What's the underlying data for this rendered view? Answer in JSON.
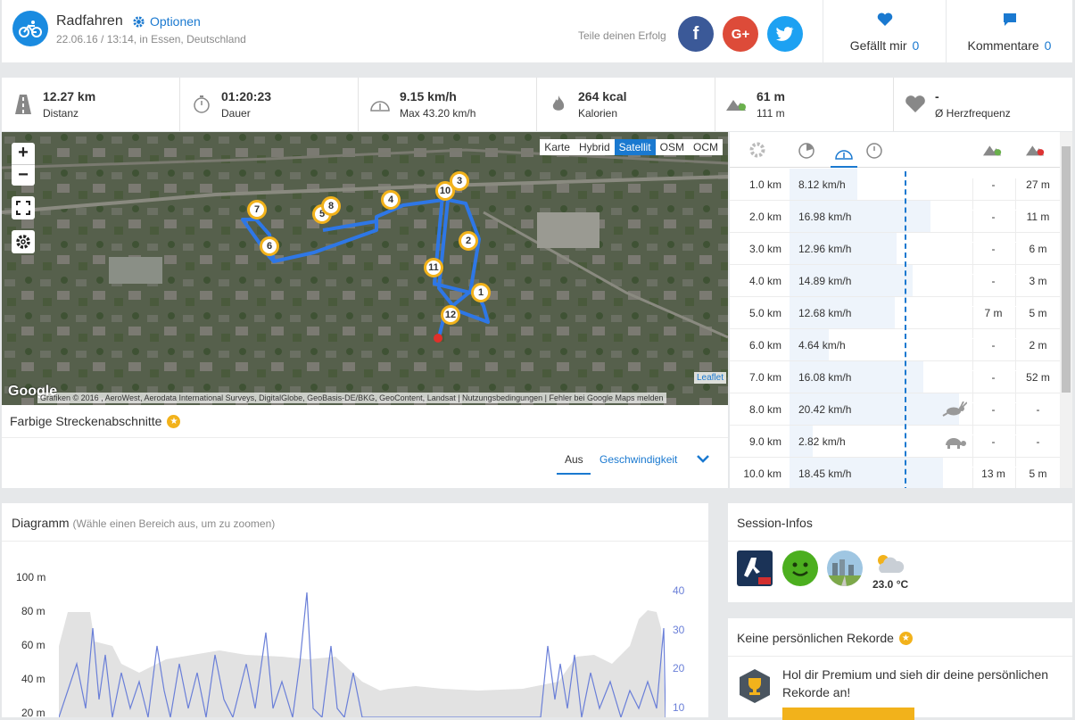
{
  "header": {
    "sport": "Radfahren",
    "options": "Optionen",
    "subline": "22.06.16 / 13:14, in Essen, Deutschland",
    "share_text": "Teile deinen Erfolg",
    "like_label": "Gefällt mir",
    "like_count": "0",
    "comment_label": "Kommentare",
    "comment_count": "0",
    "facebook": "f",
    "google": "G+"
  },
  "stats": [
    {
      "value": "12.27 km",
      "label": "Distanz",
      "icon": "road-icon"
    },
    {
      "value": "01:20:23",
      "label": "Dauer",
      "icon": "stopwatch-icon"
    },
    {
      "value": "9.15 km/h",
      "label": "Max 43.20 km/h",
      "icon": "speedometer-icon"
    },
    {
      "value": "264 kcal",
      "label": "Kalorien",
      "icon": "flame-icon"
    },
    {
      "value": "61 m",
      "label": "111 m",
      "icon": "elevation-icon"
    },
    {
      "value": "-",
      "label": "Ø Herzfrequenz",
      "icon": "heart-icon"
    }
  ],
  "map": {
    "zoom_in": "+",
    "zoom_out": "−",
    "layers": [
      "Karte",
      "Hybrid",
      "Satellit",
      "OSM",
      "OCM"
    ],
    "active_layer": "Satellit",
    "leaflet": "Leaflet",
    "google": "Google",
    "attribution": "Grafiken © 2016 , AeroWest, Aerodata International Surveys, DigitalGlobe, GeoBasis-DE/BKG, GeoContent, Landsat | Nutzungsbedingungen | Fehler bei Google Maps melden",
    "markers": [
      "1",
      "2",
      "3",
      "4",
      "5",
      "6",
      "7",
      "8",
      "10",
      "11",
      "12"
    ]
  },
  "segments": {
    "title": "Farbige Streckenabschnitte",
    "off": "Aus",
    "speed": "Geschwindigkeit"
  },
  "splits": [
    {
      "km": "1.0 km",
      "speed": "8.12 km/h",
      "up": "-",
      "down": "27 m",
      "fraction": 0.38
    },
    {
      "km": "2.0 km",
      "speed": "16.98 km/h",
      "up": "-",
      "down": "11 m",
      "fraction": 0.79
    },
    {
      "km": "3.0 km",
      "speed": "12.96 km/h",
      "up": "-",
      "down": "6 m",
      "fraction": 0.6
    },
    {
      "km": "4.0 km",
      "speed": "14.89 km/h",
      "up": "-",
      "down": "3 m",
      "fraction": 0.69
    },
    {
      "km": "5.0 km",
      "speed": "12.68 km/h",
      "up": "7 m",
      "down": "5 m",
      "fraction": 0.59
    },
    {
      "km": "6.0 km",
      "speed": "4.64 km/h",
      "up": "-",
      "down": "2 m",
      "fraction": 0.22
    },
    {
      "km": "7.0 km",
      "speed": "16.08 km/h",
      "up": "-",
      "down": "52 m",
      "fraction": 0.75
    },
    {
      "km": "8.0 km",
      "speed": "20.42 km/h",
      "up": "-",
      "down": "-",
      "fraction": 0.95,
      "badge": "rabbit-icon"
    },
    {
      "km": "9.0 km",
      "speed": "2.82 km/h",
      "up": "-",
      "down": "-",
      "fraction": 0.13,
      "badge": "turtle-icon"
    },
    {
      "km": "10.0 km",
      "speed": "18.45 km/h",
      "up": "13 m",
      "down": "5 m",
      "fraction": 0.86
    }
  ],
  "diagram": {
    "title": "Diagramm",
    "hint": "(Wähle einen Bereich aus, um zu zoomen)",
    "y_left": [
      "100 m",
      "80 m",
      "60 m",
      "40 m",
      "20 m"
    ],
    "y_right": [
      "40",
      "30",
      "20",
      "10"
    ]
  },
  "session": {
    "title": "Session-Infos",
    "temperature": "23.0 °C"
  },
  "records": {
    "title": "Keine persönlichen Rekorde",
    "premium": "Hol dir Premium und sieh dir deine persönlichen Rekorde an!"
  },
  "colors": {
    "accent": "#1a79d0",
    "star": "#f2b21b",
    "facebook": "#3b5998",
    "google": "#dd4b39",
    "twitter": "#1da1f2"
  }
}
